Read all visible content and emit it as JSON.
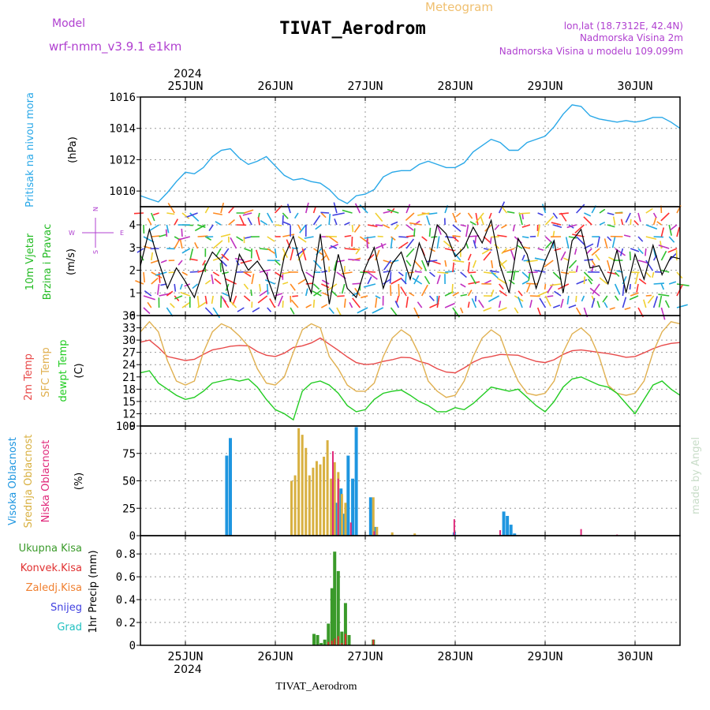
{
  "header": {
    "model_label": "Model",
    "model_name": "wrf-nmm_v3.9.1 e1km",
    "station": "TIVAT_Aerodrom",
    "product": "Meteogram",
    "lonlat": "lon,lat (18.7312E, 42.4N)",
    "elev": "Nadmorska Visina 2m",
    "model_elev": "Nadmorska Visina u modelu 109.099m",
    "footer_station": "TIVAT_Aerodrom",
    "watermark": "made by Angel",
    "year": "2024"
  },
  "colors": {
    "pressure": "#29a8e8",
    "t2m": "#e84a4a",
    "tsfc": "#e0b050",
    "dewpt": "#22cc22",
    "speed": "#000000",
    "high_cloud": "#1e96e0",
    "mid_cloud": "#d8b040",
    "low_cloud": "#e0287a",
    "total_precip": "#3a9a2a",
    "conv_precip": "#e03030",
    "frozen_precip": "#f08030",
    "snow": "#4040e0",
    "hail": "#20c0c0",
    "model_label": "#b040d0",
    "product": "#f0c070"
  },
  "chart_data": [
    {
      "type": "line",
      "panel": "pressure",
      "ylabel": "Pritisak na nivou mora",
      "unit": "(hPa)",
      "xlabels": [
        "25JUN",
        "26JUN",
        "27JUN",
        "28JUN",
        "29JUN",
        "30JUN"
      ],
      "ylim": [
        1009,
        1016
      ],
      "yticks": [
        1010,
        1012,
        1014,
        1016
      ],
      "x": [
        24.5,
        24.6,
        24.7,
        24.8,
        24.9,
        25.0,
        25.1,
        25.2,
        25.3,
        25.4,
        25.5,
        25.6,
        25.7,
        25.8,
        25.9,
        26.0,
        26.1,
        26.2,
        26.3,
        26.4,
        26.5,
        26.6,
        26.7,
        26.8,
        26.9,
        27.0,
        27.1,
        27.2,
        27.3,
        27.4,
        27.5,
        27.6,
        27.7,
        27.8,
        27.9,
        28.0,
        28.1,
        28.2,
        28.3,
        28.4,
        28.5,
        28.6,
        28.7,
        28.8,
        28.9,
        29.0,
        29.1,
        29.2,
        29.3,
        29.4,
        29.5,
        29.6,
        29.7,
        29.8,
        29.9,
        30.0,
        30.1,
        30.2,
        30.3,
        30.4,
        30.5
      ],
      "series": [
        {
          "values": [
            1009.7,
            1009.5,
            1009.3,
            1009.9,
            1010.6,
            1011.2,
            1011.1,
            1011.5,
            1012.2,
            1012.6,
            1012.7,
            1012.1,
            1011.7,
            1011.9,
            1012.2,
            1011.6,
            1011.0,
            1010.7,
            1010.8,
            1010.6,
            1010.5,
            1010.1,
            1009.5,
            1009.2,
            1009.7,
            1009.8,
            1010.1,
            1010.9,
            1011.2,
            1011.3,
            1011.3,
            1011.7,
            1011.9,
            1011.7,
            1011.5,
            1011.5,
            1011.8,
            1012.5,
            1012.9,
            1013.3,
            1013.1,
            1012.6,
            1012.6,
            1013.1,
            1013.3,
            1013.5,
            1014.1,
            1014.9,
            1015.5,
            1015.4,
            1014.8,
            1014.6,
            1014.5,
            1014.4,
            1014.5,
            1014.4,
            1014.5,
            1014.7,
            1014.7,
            1014.4,
            1014.0
          ]
        }
      ]
    },
    {
      "type": "line",
      "panel": "wind",
      "ylabel": [
        "10m Vjetar",
        "Brzina i Pravac"
      ],
      "unit": "(m/s)",
      "compass": [
        "N",
        "W",
        "E",
        "S"
      ],
      "ylim": [
        0,
        4.8
      ],
      "yticks": [
        0,
        1,
        2,
        3,
        4
      ],
      "x": [
        24.5,
        24.6,
        24.7,
        24.8,
        24.9,
        25.0,
        25.1,
        25.2,
        25.3,
        25.4,
        25.5,
        25.6,
        25.7,
        25.8,
        25.9,
        26.0,
        26.1,
        26.2,
        26.3,
        26.4,
        26.5,
        26.6,
        26.7,
        26.8,
        26.9,
        27.0,
        27.1,
        27.2,
        27.3,
        27.4,
        27.5,
        27.6,
        27.7,
        27.8,
        27.9,
        28.0,
        28.1,
        28.2,
        28.3,
        28.4,
        28.5,
        28.6,
        28.7,
        28.8,
        28.9,
        29.0,
        29.1,
        29.2,
        29.3,
        29.4,
        29.5,
        29.6,
        29.7,
        29.8,
        29.9,
        30.0,
        30.1,
        30.2,
        30.3,
        30.4,
        30.5
      ],
      "series": [
        {
          "values": [
            2.2,
            3.8,
            2.4,
            1.2,
            2.1,
            1.5,
            0.8,
            2.0,
            2.8,
            2.4,
            0.6,
            2.7,
            2.0,
            2.4,
            1.8,
            0.7,
            2.6,
            3.5,
            2.0,
            1.0,
            3.6,
            0.5,
            2.7,
            1.2,
            0.8,
            2.1,
            3.0,
            1.2,
            2.3,
            2.8,
            1.6,
            3.2,
            2.2,
            4.0,
            3.6,
            2.6,
            3.0,
            3.9,
            3.2,
            4.2,
            2.2,
            1.0,
            3.4,
            2.7,
            1.2,
            2.4,
            3.3,
            1.0,
            3.3,
            3.8,
            2.1,
            2.2,
            1.4,
            2.9,
            1.0,
            2.7,
            1.6,
            3.1,
            1.8,
            2.6,
            2.5
          ]
        }
      ]
    },
    {
      "type": "line",
      "panel": "temperature",
      "ylabel": [
        "2m Temp",
        "SFC Temp",
        "dewpt Temp"
      ],
      "unit": "(C)",
      "ylim": [
        9,
        36
      ],
      "yticks": [
        9,
        12,
        15,
        18,
        21,
        24,
        27,
        30,
        33,
        36
      ],
      "x": [
        24.5,
        24.6,
        24.7,
        24.8,
        24.9,
        25.0,
        25.1,
        25.2,
        25.3,
        25.4,
        25.5,
        25.6,
        25.7,
        25.8,
        25.9,
        26.0,
        26.1,
        26.2,
        26.3,
        26.4,
        26.5,
        26.6,
        26.7,
        26.8,
        26.9,
        27.0,
        27.1,
        27.2,
        27.3,
        27.4,
        27.5,
        27.6,
        27.7,
        27.8,
        27.9,
        28.0,
        28.1,
        28.2,
        28.3,
        28.4,
        28.5,
        28.6,
        28.7,
        28.8,
        28.9,
        29.0,
        29.1,
        29.2,
        29.3,
        29.4,
        29.5,
        29.6,
        29.7,
        29.8,
        29.9,
        30.0,
        30.1,
        30.2,
        30.3,
        30.4,
        30.5
      ],
      "series": [
        {
          "name": "2m Temp",
          "values": [
            29.5,
            30.0,
            28.2,
            26.0,
            25.5,
            25.0,
            25.3,
            26.5,
            27.6,
            28.0,
            28.5,
            28.7,
            28.6,
            27.2,
            26.3,
            26.0,
            26.8,
            28.2,
            28.6,
            29.3,
            30.5,
            29.0,
            27.5,
            25.9,
            24.5,
            24.0,
            24.2,
            24.8,
            25.2,
            25.8,
            25.7,
            24.8,
            24.2,
            23.0,
            22.2,
            22.0,
            23.2,
            24.6,
            25.6,
            26.0,
            26.5,
            26.4,
            26.3,
            25.5,
            24.8,
            24.5,
            25.2,
            26.5,
            27.4,
            27.6,
            27.3,
            27.0,
            26.7,
            26.3,
            25.8,
            26.0,
            26.9,
            27.9,
            28.7,
            29.2,
            29.4
          ]
        },
        {
          "name": "SFC Temp",
          "values": [
            32.0,
            34.5,
            32.0,
            25.0,
            20.0,
            19.0,
            20.0,
            27.0,
            32.0,
            34.0,
            33.0,
            31.0,
            28.5,
            23.0,
            19.5,
            19.0,
            21.0,
            27.0,
            32.5,
            34.0,
            33.0,
            26.0,
            23.0,
            19.0,
            17.5,
            17.5,
            19.5,
            26.0,
            30.5,
            32.5,
            31.0,
            26.5,
            20.0,
            17.5,
            16.0,
            16.5,
            20.0,
            26.0,
            30.5,
            32.5,
            31.0,
            25.0,
            20.0,
            17.0,
            16.5,
            17.0,
            20.0,
            27.0,
            31.5,
            33.0,
            31.0,
            26.0,
            19.0,
            17.0,
            16.5,
            17.0,
            20.0,
            27.0,
            32.0,
            34.5,
            34.0
          ]
        },
        {
          "name": "dewpt Temp",
          "values": [
            22.0,
            22.5,
            19.5,
            18.0,
            16.5,
            15.5,
            16.0,
            17.5,
            19.5,
            20.0,
            20.5,
            20.0,
            20.5,
            18.5,
            15.5,
            13.0,
            12.0,
            10.5,
            17.5,
            19.5,
            20.0,
            19.0,
            17.0,
            14.0,
            12.5,
            13.0,
            15.5,
            17.0,
            17.5,
            17.8,
            16.5,
            15.0,
            14.0,
            12.5,
            12.5,
            13.5,
            13.0,
            14.5,
            16.5,
            18.5,
            18.0,
            17.5,
            18.0,
            16.0,
            14.0,
            12.5,
            15.0,
            18.5,
            20.5,
            21.0,
            20.0,
            19.0,
            18.5,
            17.0,
            14.5,
            12.0,
            15.5,
            19.0,
            20.0,
            18.0,
            16.5
          ]
        }
      ]
    },
    {
      "type": "bar",
      "panel": "cloud",
      "ylabel": [
        "Visoka Oblacnost",
        "Srednja Oblacnost",
        "Niska Oblacnost"
      ],
      "unit": "(%)",
      "ylim": [
        0,
        100
      ],
      "yticks": [
        0,
        25,
        50,
        75,
        100
      ],
      "series": [
        {
          "name": "Visoka Oblacnost",
          "x": [
            25.46,
            25.5,
            26.68,
            26.73,
            26.77,
            26.81,
            26.86,
            26.9,
            27.06,
            27.1,
            27.99,
            28.54,
            28.58,
            28.62,
            28.66
          ],
          "values": [
            73,
            89,
            30,
            43,
            20,
            73,
            52,
            99,
            35,
            8,
            3,
            22,
            18,
            10,
            2
          ]
        },
        {
          "name": "Srednja Oblacnost",
          "x": [
            26.18,
            26.22,
            26.26,
            26.3,
            26.34,
            26.38,
            26.42,
            26.46,
            26.5,
            26.54,
            26.58,
            26.62,
            26.66,
            26.7,
            26.74,
            26.78,
            27.09,
            27.13,
            27.3,
            27.55
          ],
          "values": [
            50,
            55,
            98,
            92,
            80,
            55,
            62,
            68,
            65,
            72,
            87,
            52,
            67,
            58,
            38,
            30,
            35,
            8,
            3,
            2
          ]
        },
        {
          "name": "Niska Oblacnost",
          "x": [
            26.64,
            26.7,
            26.84,
            27.1,
            27.99,
            28.5,
            29.4,
            29.8
          ],
          "values": [
            77,
            52,
            12,
            4,
            15,
            5,
            6,
            1
          ]
        }
      ]
    },
    {
      "type": "bar",
      "panel": "precip",
      "ylabel": "1hr Precip (mm)",
      "legend": [
        "Ukupna Kisa",
        "Konvek.Kisa",
        "Zaledj.Kisa",
        "Snijeg",
        "Grad"
      ],
      "ylim": [
        0,
        0.96
      ],
      "yticks": [
        0,
        0.2,
        0.4,
        0.6,
        0.8
      ],
      "series": [
        {
          "name": "Ukupna Kisa",
          "x": [
            26.43,
            26.47,
            26.51,
            26.55,
            26.59,
            26.63,
            26.66,
            26.7,
            26.74,
            26.78,
            26.82,
            27.09
          ],
          "values": [
            0.1,
            0.09,
            0.02,
            0.05,
            0.19,
            0.5,
            0.82,
            0.65,
            0.12,
            0.37,
            0.09,
            0.05
          ]
        },
        {
          "name": "Konvek.Kisa",
          "x": [
            26.59,
            26.63,
            26.66,
            26.7,
            26.74,
            26.78,
            27.09
          ],
          "values": [
            0.03,
            0.04,
            0.06,
            0.08,
            0.02,
            0.1,
            0.05
          ]
        }
      ]
    }
  ]
}
